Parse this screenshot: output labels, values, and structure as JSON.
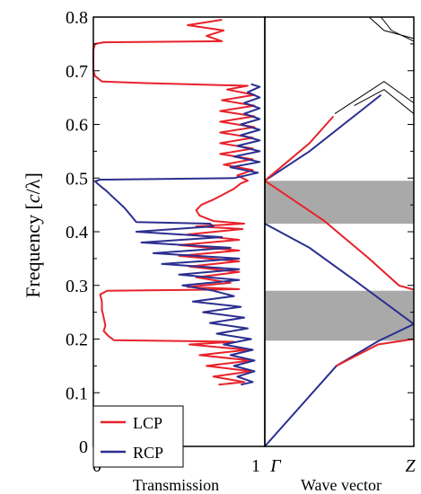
{
  "chart_data": [
    {
      "type": "line",
      "panel": "transmission",
      "ylabel_prefix": "Frequency [",
      "ylabel_italic": "c",
      "ylabel_suffix": "/λ]",
      "xlabel": "Transmission",
      "xlim": [
        0,
        1
      ],
      "ylim": [
        0,
        0.8
      ],
      "xticks": [
        "0",
        "1"
      ],
      "yticks": [
        "0",
        "0.1",
        "0.2",
        "0.3",
        "0.4",
        "0.5",
        "0.6",
        "0.7",
        "0.8"
      ],
      "legend": {
        "position": "bottom-left",
        "entries": [
          "LCP",
          "RCP"
        ]
      },
      "series": [
        {
          "name": "LCP",
          "color": "#e8222a",
          "points": [
            [
              0.73,
              0.115
            ],
            [
              0.88,
              0.12
            ],
            [
              0.7,
              0.13
            ],
            [
              0.92,
              0.14
            ],
            [
              0.66,
              0.15
            ],
            [
              0.92,
              0.16
            ],
            [
              0.62,
              0.17
            ],
            [
              0.9,
              0.18
            ],
            [
              0.56,
              0.19
            ],
            [
              0.82,
              0.195
            ],
            [
              0.12,
              0.198
            ],
            [
              0.09,
              0.205
            ],
            [
              0.06,
              0.215
            ],
            [
              0.07,
              0.225
            ],
            [
              0.06,
              0.24
            ],
            [
              0.05,
              0.255
            ],
            [
              0.05,
              0.27
            ],
            [
              0.04,
              0.283
            ],
            [
              0.08,
              0.29
            ],
            [
              0.7,
              0.292
            ],
            [
              0.85,
              0.293
            ],
            [
              0.55,
              0.297
            ],
            [
              0.8,
              0.305
            ],
            [
              0.6,
              0.315
            ],
            [
              0.85,
              0.325
            ],
            [
              0.56,
              0.335
            ],
            [
              0.85,
              0.345
            ],
            [
              0.5,
              0.355
            ],
            [
              0.85,
              0.365
            ],
            [
              0.5,
              0.375
            ],
            [
              0.85,
              0.385
            ],
            [
              0.55,
              0.395
            ],
            [
              0.87,
              0.405
            ],
            [
              0.6,
              0.41
            ],
            [
              0.88,
              0.415
            ],
            [
              0.7,
              0.42
            ],
            [
              0.62,
              0.43
            ],
            [
              0.6,
              0.44
            ],
            [
              0.63,
              0.45
            ],
            [
              0.7,
              0.46
            ],
            [
              0.76,
              0.47
            ],
            [
              0.82,
              0.48
            ],
            [
              0.86,
              0.49
            ],
            [
              0.9,
              0.495
            ],
            [
              0.84,
              0.505
            ],
            [
              0.93,
              0.515
            ],
            [
              0.76,
              0.525
            ],
            [
              0.93,
              0.535
            ],
            [
              0.74,
              0.545
            ],
            [
              0.93,
              0.555
            ],
            [
              0.74,
              0.565
            ],
            [
              0.93,
              0.575
            ],
            [
              0.74,
              0.585
            ],
            [
              0.94,
              0.595
            ],
            [
              0.74,
              0.605
            ],
            [
              0.94,
              0.615
            ],
            [
              0.74,
              0.625
            ],
            [
              0.94,
              0.635
            ],
            [
              0.75,
              0.645
            ],
            [
              0.94,
              0.655
            ],
            [
              0.78,
              0.665
            ],
            [
              0.9,
              0.672
            ],
            [
              0.3,
              0.677
            ],
            [
              0.05,
              0.68
            ],
            [
              0.01,
              0.69
            ],
            [
              0.0,
              0.7
            ],
            [
              0.0,
              0.74
            ],
            [
              0.01,
              0.75
            ],
            [
              0.06,
              0.753
            ],
            [
              0.75,
              0.755
            ],
            [
              0.66,
              0.765
            ],
            [
              0.76,
              0.775
            ],
            [
              0.55,
              0.785
            ],
            [
              0.75,
              0.795
            ]
          ]
        },
        {
          "name": "RCP",
          "color": "#2b2f8f",
          "points": [
            [
              0.86,
              0.115
            ],
            [
              0.93,
              0.12
            ],
            [
              0.84,
              0.13
            ],
            [
              0.94,
              0.14
            ],
            [
              0.82,
              0.15
            ],
            [
              0.94,
              0.16
            ],
            [
              0.8,
              0.17
            ],
            [
              0.93,
              0.18
            ],
            [
              0.76,
              0.19
            ],
            [
              0.92,
              0.2
            ],
            [
              0.72,
              0.21
            ],
            [
              0.9,
              0.22
            ],
            [
              0.68,
              0.23
            ],
            [
              0.88,
              0.24
            ],
            [
              0.64,
              0.25
            ],
            [
              0.86,
              0.26
            ],
            [
              0.58,
              0.27
            ],
            [
              0.82,
              0.28
            ],
            [
              0.7,
              0.29
            ],
            [
              0.52,
              0.3
            ],
            [
              0.85,
              0.31
            ],
            [
              0.5,
              0.32
            ],
            [
              0.85,
              0.33
            ],
            [
              0.4,
              0.34
            ],
            [
              0.85,
              0.35
            ],
            [
              0.35,
              0.36
            ],
            [
              0.8,
              0.37
            ],
            [
              0.28,
              0.38
            ],
            [
              0.75,
              0.39
            ],
            [
              0.25,
              0.4
            ],
            [
              0.7,
              0.41
            ],
            [
              0.68,
              0.415
            ],
            [
              0.25,
              0.418
            ],
            [
              0.22,
              0.43
            ],
            [
              0.18,
              0.445
            ],
            [
              0.13,
              0.46
            ],
            [
              0.08,
              0.475
            ],
            [
              0.03,
              0.488
            ],
            [
              0.01,
              0.494
            ],
            [
              0.04,
              0.497
            ],
            [
              0.82,
              0.5
            ],
            [
              0.96,
              0.51
            ],
            [
              0.8,
              0.52
            ],
            [
              0.97,
              0.53
            ],
            [
              0.82,
              0.54
            ],
            [
              0.97,
              0.55
            ],
            [
              0.84,
              0.56
            ],
            [
              0.97,
              0.57
            ],
            [
              0.86,
              0.58
            ],
            [
              0.97,
              0.59
            ],
            [
              0.86,
              0.6
            ],
            [
              0.97,
              0.61
            ],
            [
              0.88,
              0.62
            ],
            [
              0.97,
              0.63
            ],
            [
              0.88,
              0.64
            ],
            [
              0.97,
              0.65
            ],
            [
              0.9,
              0.66
            ],
            [
              0.97,
              0.67
            ],
            [
              0.92,
              0.675
            ]
          ]
        }
      ]
    },
    {
      "type": "line",
      "panel": "band-structure",
      "xlabel": "Wave vector",
      "xticks": [
        "Γ",
        "Z"
      ],
      "xlim": [
        0,
        1
      ],
      "ylim": [
        0,
        0.8
      ],
      "bandgaps": [
        [
          0.197,
          0.29
        ],
        [
          0.415,
          0.495
        ]
      ],
      "gap_color": "#a9a9a9",
      "series": [
        {
          "name": "RCP",
          "color": "#2b2f8f",
          "points": [
            [
              0,
              0
            ],
            [
              0.48,
              0.15
            ],
            [
              0.76,
              0.196
            ],
            [
              1.0,
              0.228
            ]
          ]
        },
        {
          "name": "RCP",
          "color": "#2b2f8f",
          "points": [
            [
              0,
              0.415
            ],
            [
              0.3,
              0.37
            ],
            [
              0.6,
              0.31
            ],
            [
              1.0,
              0.228
            ]
          ]
        },
        {
          "name": "RCP",
          "color": "#2b2f8f",
          "points": [
            [
              0,
              0.495
            ],
            [
              0.3,
              0.55
            ],
            [
              0.62,
              0.62
            ],
            [
              0.78,
              0.655
            ]
          ]
        },
        {
          "name": "LCP",
          "color": "#e8222a",
          "points": [
            [
              0.48,
              0.15
            ],
            [
              0.76,
              0.19
            ],
            [
              1.0,
              0.2
            ]
          ]
        },
        {
          "name": "LCP",
          "color": "#e8222a",
          "points": [
            [
              0,
              0.495
            ],
            [
              0.4,
              0.42
            ],
            [
              0.7,
              0.35
            ],
            [
              0.9,
              0.3
            ],
            [
              1.0,
              0.292
            ]
          ]
        },
        {
          "name": "LCP",
          "color": "#e8222a",
          "points": [
            [
              0,
              0.495
            ],
            [
              0.3,
              0.565
            ],
            [
              0.46,
              0.615
            ]
          ]
        },
        {
          "name": "band",
          "color": "#000000",
          "points": [
            [
              0.47,
              0.62
            ],
            [
              0.8,
              0.68
            ],
            [
              1.0,
              0.64
            ]
          ]
        },
        {
          "name": "band",
          "color": "#000000",
          "points": [
            [
              0.6,
              0.635
            ],
            [
              0.8,
              0.665
            ],
            [
              1.0,
              0.62
            ]
          ]
        },
        {
          "name": "band",
          "color": "#000000",
          "points": [
            [
              0.7,
              0.8
            ],
            [
              0.8,
              0.775
            ],
            [
              1.0,
              0.76
            ]
          ]
        },
        {
          "name": "band",
          "color": "#000000",
          "points": [
            [
              0.78,
              0.8
            ],
            [
              0.85,
              0.775
            ],
            [
              1.0,
              0.755
            ]
          ]
        }
      ]
    }
  ]
}
